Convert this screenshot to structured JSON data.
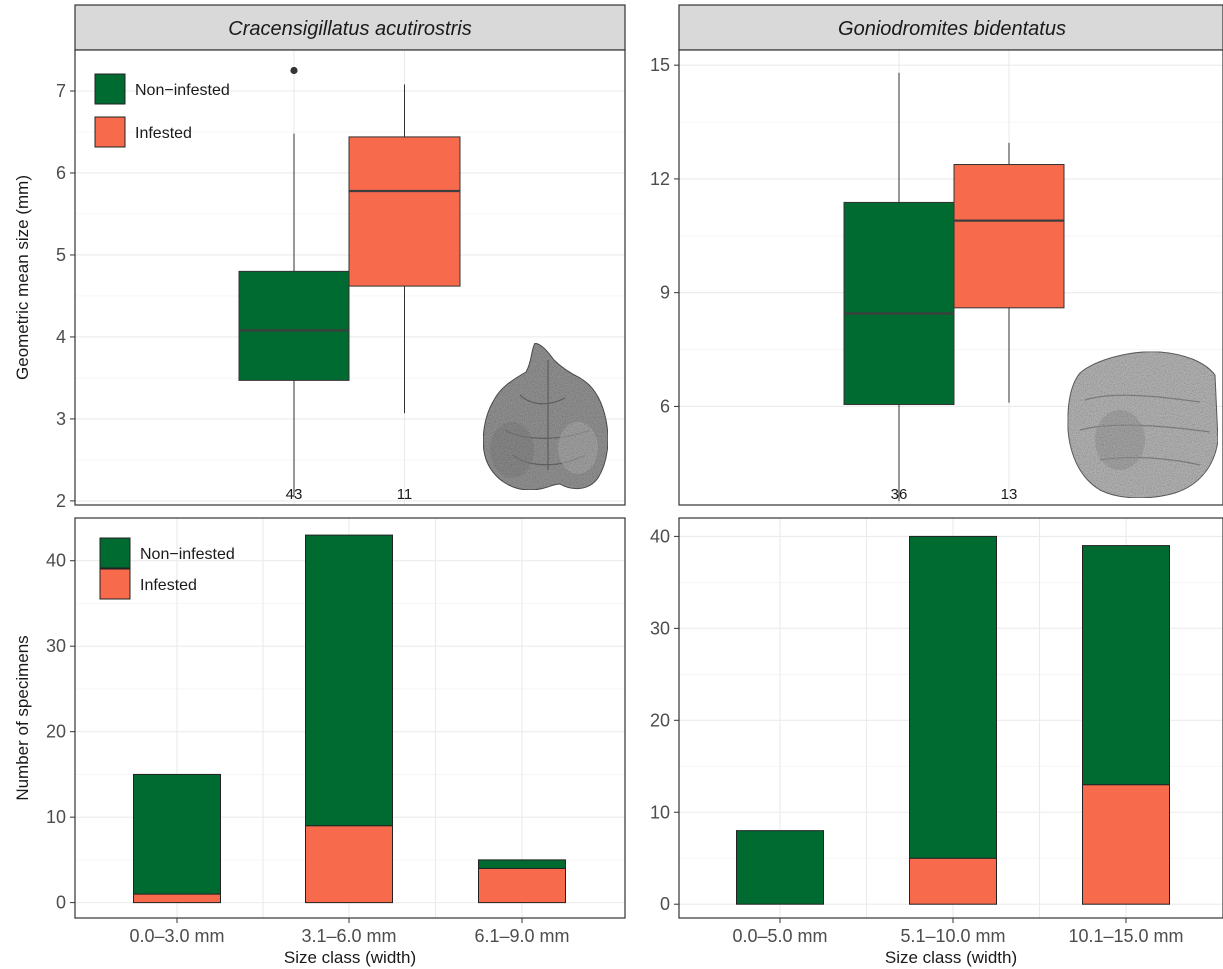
{
  "colors": {
    "non_infested": "#006b30",
    "infested": "#f76a4c",
    "strip_bg": "#d9d9d9",
    "grid": "#ebebeb",
    "median": "#3d3d3d"
  },
  "legend": {
    "non_infested": "Non−infested",
    "infested": "Infested"
  },
  "chart_data": [
    {
      "type": "boxplot",
      "title": "Cracensigillatus acutirostris",
      "ylabel": "Geometric mean size (mm)",
      "xlabel": "",
      "ylim": [
        1.95,
        7.5
      ],
      "yticks": [
        2,
        3,
        4,
        5,
        6,
        7
      ],
      "grid": true,
      "legend_position": "top-left",
      "groups": [
        {
          "name": "Non−infested",
          "color_key": "non_infested",
          "whisker_low": 2.05,
          "q1": 3.47,
          "median": 4.08,
          "q3": 4.8,
          "whisker_high": 6.48,
          "outliers": [
            7.25
          ],
          "n": "43"
        },
        {
          "name": "Infested",
          "color_key": "infested",
          "whisker_low": 3.07,
          "q1": 4.62,
          "median": 5.78,
          "q3": 6.44,
          "whisker_high": 7.08,
          "outliers": [],
          "n": "11"
        }
      ]
    },
    {
      "type": "boxplot",
      "title": "Goniodromites bidentatus",
      "ylabel": "",
      "xlabel": "",
      "ylim": [
        3.4,
        15.4
      ],
      "yticks": [
        6,
        9,
        12,
        15
      ],
      "grid": true,
      "groups": [
        {
          "name": "Non−infested",
          "color_key": "non_infested",
          "whisker_low": 3.5,
          "q1": 6.05,
          "median": 8.45,
          "q3": 11.38,
          "whisker_high": 14.8,
          "outliers": [],
          "n": "36"
        },
        {
          "name": "Infested",
          "color_key": "infested",
          "whisker_low": 6.1,
          "q1": 8.6,
          "median": 10.9,
          "q3": 12.38,
          "whisker_high": 12.95,
          "outliers": [],
          "n": "13"
        }
      ]
    },
    {
      "type": "bar",
      "stacked": true,
      "title": "",
      "ylabel": "Number of specimens",
      "xlabel": "Size class (width)",
      "ylim": [
        -1.8,
        45
      ],
      "yticks": [
        0,
        10,
        20,
        30,
        40
      ],
      "grid": true,
      "legend_position": "top-left",
      "categories": [
        "0.0–3.0 mm",
        "3.1–6.0 mm",
        "6.1–9.0 mm"
      ],
      "series": [
        {
          "name": "Infested",
          "color_key": "infested",
          "values": [
            1,
            9,
            4
          ]
        },
        {
          "name": "Non−infested",
          "color_key": "non_infested",
          "values": [
            14,
            34,
            1
          ]
        }
      ]
    },
    {
      "type": "bar",
      "stacked": true,
      "title": "",
      "ylabel": "",
      "xlabel": "Size class (width)",
      "ylim": [
        -1.5,
        42
      ],
      "yticks": [
        0,
        10,
        20,
        30,
        40
      ],
      "grid": true,
      "categories": [
        "0.0–5.0 mm",
        "5.1–10.0 mm",
        "10.1–15.0 mm"
      ],
      "series": [
        {
          "name": "Infested",
          "color_key": "infested",
          "values": [
            0,
            5,
            13
          ]
        },
        {
          "name": "Non−infested",
          "color_key": "non_infested",
          "values": [
            8,
            35,
            26
          ]
        }
      ]
    }
  ]
}
